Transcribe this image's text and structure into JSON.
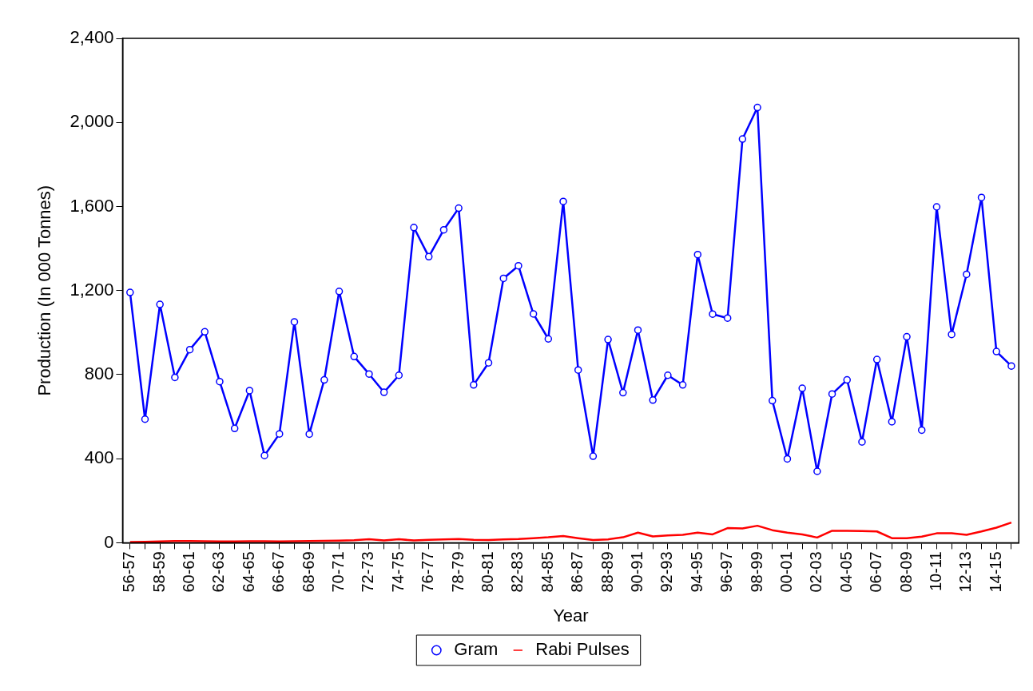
{
  "chart_data": {
    "type": "line",
    "xlabel": "Year",
    "ylabel": "Production (In 000 Tonnes)",
    "categories": [
      "56-57",
      null,
      "58-59",
      null,
      "60-61",
      null,
      "62-63",
      null,
      "64-65",
      null,
      "66-67",
      null,
      "68-69",
      null,
      "70-71",
      null,
      "72-73",
      null,
      "74-75",
      null,
      "76-77",
      null,
      "78-79",
      null,
      "80-81",
      null,
      "82-83",
      null,
      "84-85",
      null,
      "86-87",
      null,
      "88-89",
      null,
      "90-91",
      null,
      "92-93",
      null,
      "94-95",
      null,
      "96-97",
      null,
      "98-99",
      null,
      "00-01",
      null,
      "02-03",
      null,
      "04-05",
      null,
      "06-07",
      null,
      "08-09",
      null,
      "10-11",
      null,
      "12-13",
      null,
      "14-15",
      null
    ],
    "series": [
      {
        "name": "Gram",
        "color": "#0000ff",
        "marker": "circle",
        "values": [
          1191,
          588,
          1134,
          787,
          919,
          1004,
          767,
          544,
          724,
          415,
          518,
          1051,
          517,
          775,
          1196,
          886,
          803,
          716,
          797,
          1500,
          1361,
          1489,
          1592,
          751,
          856,
          1258,
          1318,
          1089,
          970,
          1624,
          822,
          412,
          967,
          714,
          1012,
          679,
          797,
          751,
          1371,
          1088,
          1069,
          1921,
          2071,
          676,
          399,
          735,
          340,
          708,
          775,
          480,
          872,
          576,
          980,
          536,
          1598,
          991,
          1277,
          1643,
          910,
          841
        ]
      },
      {
        "name": "Rabi Pulses",
        "color": "#ff0000",
        "marker": "none",
        "values": [
          4,
          5,
          6,
          8,
          8,
          7,
          6,
          6,
          7,
          7,
          6,
          7,
          8,
          9,
          10,
          12,
          17,
          11,
          17,
          11,
          14,
          16,
          18,
          14,
          13,
          16,
          18,
          22,
          26,
          32,
          22,
          13,
          16,
          26,
          48,
          30,
          35,
          38,
          48,
          40,
          70,
          68,
          81,
          60,
          48,
          40,
          25,
          57,
          57,
          56,
          54,
          22,
          22,
          29,
          45,
          45,
          38,
          54,
          72,
          96
        ]
      }
    ],
    "ylim": [
      0,
      2400
    ],
    "yticks": [
      0,
      400,
      800,
      {
        "value": 1200,
        "label": "1,200"
      },
      {
        "value": 1600,
        "label": "1,600"
      },
      {
        "value": 2000,
        "label": "2,000"
      },
      {
        "value": 2400,
        "label": "2,400"
      }
    ],
    "grid": false,
    "legend": "bottom",
    "line_style": "solid"
  }
}
